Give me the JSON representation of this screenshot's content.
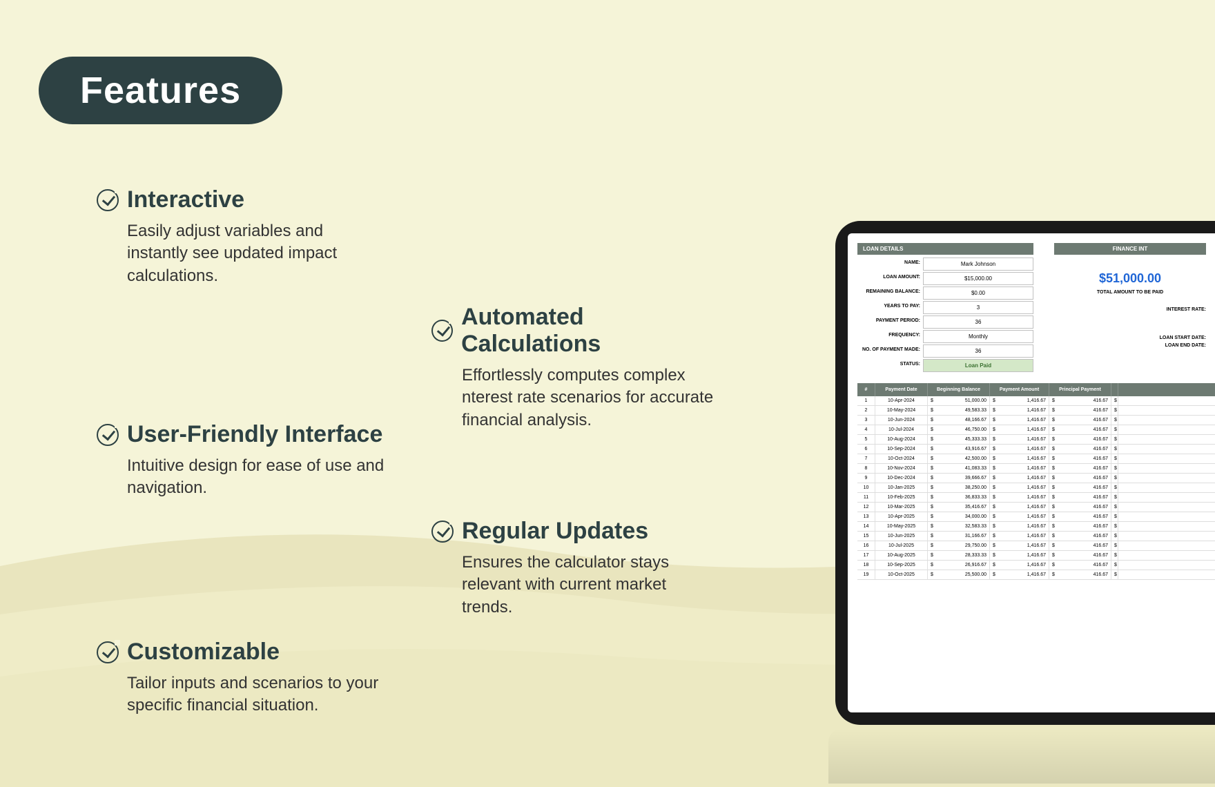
{
  "header": {
    "title": "Features"
  },
  "features": [
    {
      "title": "Interactive",
      "desc": "Easily adjust variables and instantly see updated impact calculations."
    },
    {
      "title": "Automated Calculations",
      "desc": "Effortlessly computes complex nterest rate scenarios for accurate financial analysis."
    },
    {
      "title": "User-Friendly Interface",
      "desc": "Intuitive design for ease of use and navigation."
    },
    {
      "title": "Regular Updates",
      "desc": "Ensures the calculator stays relevant with current market trends."
    },
    {
      "title": "Customizable",
      "desc": "Tailor inputs and scenarios to your specific financial situation."
    }
  ],
  "loan": {
    "header_left": "LOAN DETAILS",
    "header_right": "FINANCE INT",
    "fields": [
      {
        "label": "NAME:",
        "value": "Mark Johnson"
      },
      {
        "label": "LOAN AMOUNT:",
        "value": "$15,000.00"
      },
      {
        "label": "REMAINING BALANCE:",
        "value": "$0.00"
      },
      {
        "label": "YEARS TO PAY:",
        "value": "3"
      },
      {
        "label": "PAYMENT PERIOD:",
        "value": "36"
      },
      {
        "label": "FREQUENCY:",
        "value": "Monthly"
      },
      {
        "label": "NO. OF PAYMENT MADE:",
        "value": "36"
      },
      {
        "label": "STATUS:",
        "value": "Loan Paid",
        "paid": true
      }
    ],
    "total_amount": "$51,000.00",
    "total_label": "TOTAL AMOUNT TO BE PAID",
    "interest_label": "INTEREST RATE:",
    "start_label": "LOAN START DATE:",
    "end_label": "LOAN END DATE:"
  },
  "schedule": {
    "columns": [
      "#",
      "Payment Date",
      "Beginning Balance",
      "Payment Amount",
      "Principal Payment"
    ],
    "rows": [
      [
        "1",
        "10-Apr-2024",
        "51,000.00",
        "1,416.67",
        "416.67"
      ],
      [
        "2",
        "10-May-2024",
        "49,583.33",
        "1,416.67",
        "416.67"
      ],
      [
        "3",
        "10-Jun-2024",
        "48,166.67",
        "1,416.67",
        "416.67"
      ],
      [
        "4",
        "10-Jul-2024",
        "46,750.00",
        "1,416.67",
        "416.67"
      ],
      [
        "5",
        "10-Aug-2024",
        "45,333.33",
        "1,416.67",
        "416.67"
      ],
      [
        "6",
        "10-Sep-2024",
        "43,916.67",
        "1,416.67",
        "416.67"
      ],
      [
        "7",
        "10-Oct-2024",
        "42,500.00",
        "1,416.67",
        "416.67"
      ],
      [
        "8",
        "10-Nov-2024",
        "41,083.33",
        "1,416.67",
        "416.67"
      ],
      [
        "9",
        "10-Dec-2024",
        "39,666.67",
        "1,416.67",
        "416.67"
      ],
      [
        "10",
        "10-Jan-2025",
        "38,250.00",
        "1,416.67",
        "416.67"
      ],
      [
        "11",
        "10-Feb-2025",
        "36,833.33",
        "1,416.67",
        "416.67"
      ],
      [
        "12",
        "10-Mar-2025",
        "35,416.67",
        "1,416.67",
        "416.67"
      ],
      [
        "13",
        "10-Apr-2025",
        "34,000.00",
        "1,416.67",
        "416.67"
      ],
      [
        "14",
        "10-May-2025",
        "32,583.33",
        "1,416.67",
        "416.67"
      ],
      [
        "15",
        "10-Jun-2025",
        "31,166.67",
        "1,416.67",
        "416.67"
      ],
      [
        "16",
        "10-Jul-2025",
        "29,750.00",
        "1,416.67",
        "416.67"
      ],
      [
        "17",
        "10-Aug-2025",
        "28,333.33",
        "1,416.67",
        "416.67"
      ],
      [
        "18",
        "10-Sep-2025",
        "26,916.67",
        "1,416.67",
        "416.67"
      ],
      [
        "19",
        "10-Oct-2025",
        "25,500.00",
        "1,416.67",
        "416.67"
      ]
    ]
  },
  "colors": {
    "bg": "#f5f4d8",
    "pill": "#2d4143",
    "accent": "#6d7a72",
    "link_blue": "#2066d6",
    "paid_bg": "#d4e8c8",
    "paid_fg": "#3a7030",
    "wave1": "#e8e6b8",
    "wave2": "#f0edc4",
    "wave3": "#d6d2a0"
  }
}
